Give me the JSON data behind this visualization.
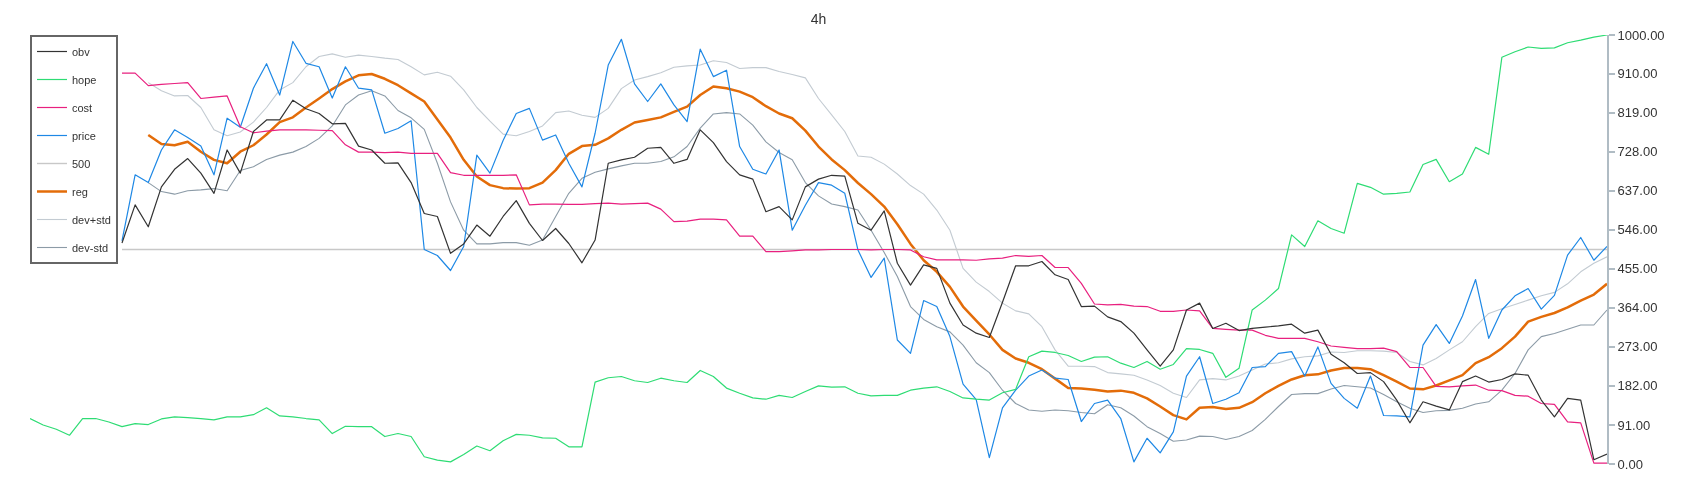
{
  "chart_data": {
    "type": "line",
    "title": "4h",
    "categories": [
      null,
      null,
      null,
      null,
      null,
      null,
      null,
      null,
      null,
      null,
      null,
      null,
      null,
      null,
      null,
      null,
      null,
      null,
      null,
      null,
      null,
      null,
      null,
      null,
      null,
      null,
      null,
      null,
      null,
      null,
      null,
      null,
      null,
      null,
      null,
      null,
      null,
      null,
      null,
      null,
      null,
      null,
      null,
      null,
      null,
      null,
      null,
      null,
      null,
      null,
      null,
      null,
      null,
      null,
      null,
      null,
      null,
      null,
      null,
      null,
      null,
      null,
      null,
      null,
      null,
      null,
      null,
      null,
      null,
      null,
      null,
      null,
      null,
      null,
      null,
      null,
      null,
      null,
      null,
      null,
      null,
      null,
      null,
      null,
      null,
      null,
      null,
      null,
      null,
      null,
      null,
      null,
      null,
      null,
      null,
      null,
      null,
      null,
      null,
      null,
      null,
      null,
      null,
      null,
      null,
      null,
      null,
      null,
      null,
      null,
      null,
      null,
      null,
      null,
      null,
      null,
      null,
      null,
      null,
      null,
      null
    ],
    "series": [
      {
        "name": "obv",
        "color": "#333333",
        "values": [
          null,
          null,
          null,
          null,
          null,
          null,
          null,
          515,
          604,
          553,
          646,
          687,
          712,
          678,
          631,
          732,
          678,
          775,
          802,
          802,
          848,
          828,
          817,
          793,
          794,
          741,
          732,
          701,
          702,
          656,
          584,
          577,
          491,
          513,
          557,
          531,
          577,
          614,
          561,
          521,
          549,
          514,
          469,
          522,
          701,
          709,
          715,
          736,
          738,
          701,
          710,
          779,
          749,
          705,
          674,
          664,
          588,
          600,
          569,
          646,
          664,
          673,
          671,
          561,
          545,
          590,
          468,
          417,
          464,
          456,
          375,
          324,
          305,
          295,
          377,
          462,
          462,
          472,
          441,
          430,
          367,
          368,
          343,
          332,
          305,
          266,
          228,
          266,
          359,
          375,
          316,
          328,
          311,
          316,
          319,
          322,
          326,
          305,
          312,
          256,
          236,
          211,
          213,
          192,
          149,
          96,
          145,
          135,
          126,
          192,
          205,
          191,
          197,
          210,
          207,
          149,
          110,
          153,
          149,
          10,
          23
        ]
      },
      {
        "name": "hope",
        "color": "#2edc74",
        "values": [
          106,
          91,
          81,
          67,
          106,
          106,
          98,
          87,
          94,
          92,
          105,
          110,
          108,
          106,
          103,
          110,
          110,
          115,
          131,
          112,
          110,
          106,
          103,
          71,
          88,
          87,
          87,
          64,
          71,
          64,
          17,
          9,
          5,
          22,
          42,
          31,
          54,
          69,
          67,
          61,
          60,
          40,
          40,
          191,
          201,
          204,
          194,
          190,
          200,
          194,
          190,
          218,
          204,
          177,
          165,
          154,
          151,
          160,
          155,
          169,
          182,
          179,
          180,
          165,
          159,
          160,
          160,
          172,
          177,
          180,
          169,
          154,
          151,
          149,
          166,
          174,
          250,
          263,
          260,
          253,
          239,
          249,
          250,
          235,
          225,
          239,
          221,
          232,
          269,
          267,
          258,
          202,
          223,
          359,
          382,
          409,
          534,
          507,
          567,
          549,
          538,
          654,
          645,
          629,
          631,
          634,
          698,
          710,
          658,
          676,
          738,
          722,
          948,
          961,
          972,
          969,
          970,
          982,
          988,
          995,
          1000
        ]
      },
      {
        "name": "cost",
        "color": "#e8207f",
        "values": [
          null,
          null,
          null,
          null,
          null,
          null,
          null,
          911,
          911,
          882,
          885,
          887,
          889,
          852,
          855,
          858,
          786,
          772,
          776,
          779,
          779,
          779,
          778,
          777,
          744,
          727,
          727,
          726,
          727,
          724,
          724,
          724,
          679,
          673,
          673,
          673,
          673,
          674,
          604,
          606,
          606,
          605,
          605,
          607,
          608,
          606,
          607,
          608,
          594,
          565,
          566,
          571,
          571,
          569,
          531,
          531,
          495,
          495,
          497,
          499,
          499,
          500,
          500,
          500,
          499,
          500,
          500,
          499,
          483,
          476,
          476,
          476,
          475,
          478,
          480,
          486,
          484,
          486,
          458,
          458,
          421,
          373,
          371,
          372,
          368,
          367,
          356,
          356,
          359,
          357,
          316,
          314,
          312,
          312,
          300,
          293,
          293,
          293,
          285,
          275,
          272,
          269,
          269,
          270,
          262,
          225,
          225,
          181,
          180,
          182,
          184,
          172,
          171,
          160,
          158,
          141,
          139,
          98,
          96,
          2,
          2
        ]
      },
      {
        "name": "price",
        "color": "#1e88e5",
        "values": [
          null,
          null,
          null,
          null,
          null,
          null,
          null,
          520,
          674,
          656,
          732,
          779,
          761,
          741,
          674,
          806,
          785,
          876,
          933,
          860,
          985,
          934,
          926,
          853,
          926,
          876,
          872,
          771,
          782,
          800,
          500,
          486,
          451,
          507,
          720,
          678,
          754,
          817,
          829,
          755,
          767,
          701,
          646,
          771,
          930,
          990,
          886,
          845,
          886,
          837,
          798,
          967,
          903,
          918,
          740,
          687,
          676,
          732,
          545,
          603,
          656,
          650,
          631,
          499,
          435,
          480,
          289,
          258,
          381,
          367,
          297,
          186,
          150,
          15,
          131,
          172,
          205,
          219,
          200,
          197,
          99,
          141,
          149,
          106,
          5,
          60,
          26,
          75,
          205,
          250,
          141,
          151,
          166,
          225,
          227,
          258,
          262,
          205,
          273,
          188,
          153,
          130,
          205,
          113,
          112,
          110,
          277,
          325,
          281,
          345,
          430,
          293,
          359,
          392,
          409,
          361,
          393,
          487,
          528,
          475,
          507
        ]
      },
      {
        "name": "500",
        "color": "#c8c8c8",
        "values": [
          null,
          null,
          null,
          null,
          null,
          null,
          null,
          500,
          500,
          500,
          500,
          500,
          500,
          500,
          500,
          500,
          500,
          500,
          500,
          500,
          500,
          500,
          500,
          500,
          500,
          500,
          500,
          500,
          500,
          500,
          500,
          500,
          500,
          500,
          500,
          500,
          500,
          500,
          500,
          500,
          500,
          500,
          500,
          500,
          500,
          500,
          500,
          500,
          500,
          500,
          500,
          500,
          500,
          500,
          500,
          500,
          500,
          500,
          500,
          500,
          500,
          500,
          500,
          500,
          500,
          500,
          500,
          500,
          500,
          500,
          500,
          500,
          500,
          500,
          500,
          500,
          500,
          500,
          500,
          500,
          500,
          500,
          500,
          500,
          500,
          500,
          500,
          500,
          500,
          500,
          500,
          500,
          500,
          500,
          500,
          500,
          500,
          500,
          500,
          500,
          500,
          500,
          500,
          500,
          500,
          500,
          500,
          500,
          500,
          500,
          500,
          500,
          500,
          500,
          500,
          500,
          500,
          500,
          500,
          500,
          500
        ]
      },
      {
        "name": "reg",
        "color": "#e36c09",
        "values": [
          null,
          null,
          null,
          null,
          null,
          null,
          null,
          null,
          null,
          767,
          746,
          743,
          751,
          728,
          709,
          701,
          728,
          743,
          768,
          797,
          808,
          831,
          852,
          874,
          892,
          906,
          909,
          898,
          883,
          864,
          845,
          803,
          761,
          709,
          670,
          650,
          643,
          642,
          643,
          656,
          685,
          723,
          741,
          744,
          759,
          779,
          796,
          802,
          808,
          821,
          833,
          860,
          880,
          876,
          868,
          855,
          834,
          817,
          806,
          777,
          740,
          710,
          685,
          655,
          629,
          600,
          559,
          513,
          475,
          448,
          413,
          367,
          334,
          302,
          266,
          246,
          236,
          221,
          199,
          177,
          176,
          173,
          169,
          171,
          166,
          153,
          134,
          114,
          104,
          131,
          133,
          128,
          131,
          144,
          165,
          182,
          197,
          207,
          209,
          218,
          224,
          224,
          221,
          207,
          192,
          176,
          174,
          183,
          195,
          207,
          235,
          249,
          270,
          297,
          332,
          343,
          352,
          365,
          381,
          395,
          420
        ]
      },
      {
        "name": "dev+std",
        "color": "#c3cbd2",
        "values": [
          null,
          null,
          null,
          null,
          null,
          null,
          null,
          null,
          null,
          889,
          870,
          858,
          859,
          831,
          779,
          765,
          774,
          797,
          831,
          872,
          889,
          926,
          950,
          956,
          948,
          953,
          950,
          946,
          943,
          926,
          907,
          913,
          904,
          872,
          831,
          799,
          769,
          765,
          775,
          788,
          819,
          823,
          813,
          808,
          829,
          875,
          895,
          903,
          912,
          925,
          928,
          930,
          940,
          936,
          922,
          924,
          924,
          915,
          908,
          900,
          852,
          814,
          775,
          718,
          715,
          699,
          676,
          649,
          629,
          592,
          545,
          456,
          424,
          402,
          375,
          357,
          350,
          320,
          266,
          228,
          228,
          227,
          213,
          210,
          207,
          196,
          183,
          165,
          155,
          196,
          199,
          196,
          205,
          219,
          233,
          236,
          245,
          250,
          252,
          261,
          260,
          264,
          264,
          263,
          260,
          239,
          231,
          246,
          266,
          285,
          320,
          351,
          362,
          372,
          382,
          392,
          400,
          420,
          448,
          468,
          483
        ]
      },
      {
        "name": "dev-std",
        "color": "#8c9ba7",
        "values": [
          null,
          null,
          null,
          null,
          null,
          null,
          null,
          null,
          null,
          656,
          635,
          629,
          637,
          639,
          642,
          637,
          684,
          693,
          710,
          720,
          727,
          740,
          759,
          788,
          837,
          860,
          870,
          858,
          824,
          807,
          780,
          701,
          611,
          545,
          513,
          513,
          516,
          516,
          510,
          522,
          577,
          631,
          666,
          680,
          688,
          695,
          701,
          701,
          705,
          716,
          740,
          783,
          816,
          819,
          816,
          790,
          751,
          726,
          709,
          656,
          625,
          606,
          600,
          592,
          545,
          493,
          437,
          367,
          337,
          320,
          308,
          277,
          236,
          213,
          172,
          141,
          126,
          123,
          126,
          124,
          120,
          117,
          138,
          131,
          112,
          87,
          71,
          53,
          56,
          65,
          64,
          57,
          64,
          78,
          104,
          134,
          162,
          164,
          164,
          175,
          183,
          180,
          177,
          162,
          145,
          130,
          120,
          124,
          125,
          130,
          140,
          145,
          172,
          211,
          266,
          297,
          304,
          314,
          324,
          324,
          359
        ]
      }
    ],
    "ylim": [
      0,
      1000
    ],
    "yticks": [
      {
        "value": 0,
        "label": "0.00"
      },
      {
        "value": 91,
        "label": "91.00"
      },
      {
        "value": 182,
        "label": "182.00"
      },
      {
        "value": 273,
        "label": "273.00"
      },
      {
        "value": 364,
        "label": "364.00"
      },
      {
        "value": 455,
        "label": "455.00"
      },
      {
        "value": 546,
        "label": "546.00"
      },
      {
        "value": 637,
        "label": "637.00"
      },
      {
        "value": 728,
        "label": "728.00"
      },
      {
        "value": 819,
        "label": "819.00"
      },
      {
        "value": 910,
        "label": "910.00"
      },
      {
        "value": 1000,
        "label": "1000.00"
      }
    ],
    "legend": "top left",
    "tick_labels": "y",
    "line_style": "solid"
  }
}
